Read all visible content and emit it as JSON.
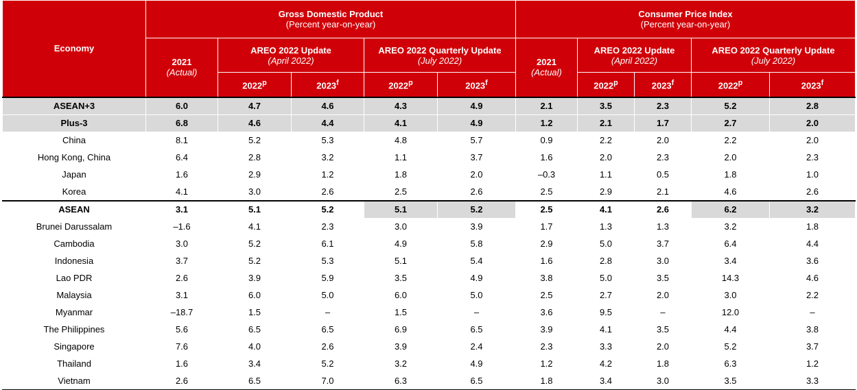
{
  "header": {
    "economy": "Economy",
    "gdp_title": "Gross Domestic Product",
    "gdp_sub": "(Percent year-on-year)",
    "cpi_title": "Consumer Price Index",
    "cpi_sub": "(Percent year-on-year)",
    "col_2021": "2021",
    "col_actual": "(Actual)",
    "areo_update": "AREO 2022 Update",
    "areo_update_date": "(April 2022)",
    "areo_quarterly": "AREO 2022 Quarterly Update",
    "areo_quarterly_date": "(July 2022)",
    "y2022": "2022",
    "y2022_sup": "p",
    "y2023": "2023",
    "y2023_sup": "f"
  },
  "rows": [
    {
      "name": "ASEAN+3",
      "gdp": [
        "6.0",
        "4.7",
        "4.6",
        "4.3",
        "4.9"
      ],
      "cpi": [
        "2.1",
        "3.5",
        "2.3",
        "5.2",
        "2.8"
      ]
    },
    {
      "name": "Plus-3",
      "gdp": [
        "6.8",
        "4.6",
        "4.4",
        "4.1",
        "4.9"
      ],
      "cpi": [
        "1.2",
        "2.1",
        "1.7",
        "2.7",
        "2.0"
      ]
    },
    {
      "name": "China",
      "gdp": [
        "8.1",
        "5.2",
        "5.3",
        "4.8",
        "5.7"
      ],
      "cpi": [
        "0.9",
        "2.2",
        "2.0",
        "2.2",
        "2.0"
      ]
    },
    {
      "name": "Hong Kong, China",
      "gdp": [
        "6.4",
        "2.8",
        "3.2",
        "1.1",
        "3.7"
      ],
      "cpi": [
        "1.6",
        "2.0",
        "2.3",
        "2.0",
        "2.3"
      ]
    },
    {
      "name": "Japan",
      "gdp": [
        "1.6",
        "2.9",
        "1.2",
        "1.8",
        "2.0"
      ],
      "cpi": [
        "–0.3",
        "1.1",
        "0.5",
        "1.8",
        "1.0"
      ]
    },
    {
      "name": "Korea",
      "gdp": [
        "4.1",
        "3.0",
        "2.6",
        "2.5",
        "2.6"
      ],
      "cpi": [
        "2.5",
        "2.9",
        "2.1",
        "4.6",
        "2.6"
      ]
    },
    {
      "name": "ASEAN",
      "gdp": [
        "3.1",
        "5.1",
        "5.2",
        "5.1",
        "5.2"
      ],
      "cpi": [
        "2.5",
        "4.1",
        "2.6",
        "6.2",
        "3.2"
      ]
    },
    {
      "name": "Brunei Darussalam",
      "gdp": [
        "–1.6",
        "4.1",
        "2.3",
        "3.0",
        "3.9"
      ],
      "cpi": [
        "1.7",
        "1.3",
        "1.3",
        "3.2",
        "1.8"
      ]
    },
    {
      "name": "Cambodia",
      "gdp": [
        "3.0",
        "5.2",
        "6.1",
        "4.9",
        "5.8"
      ],
      "cpi": [
        "2.9",
        "5.0",
        "3.7",
        "6.4",
        "4.4"
      ]
    },
    {
      "name": "Indonesia",
      "gdp": [
        "3.7",
        "5.2",
        "5.3",
        "5.1",
        "5.4"
      ],
      "cpi": [
        "1.6",
        "2.8",
        "3.0",
        "3.4",
        "3.6"
      ]
    },
    {
      "name": "Lao PDR",
      "gdp": [
        "2.6",
        "3.9",
        "5.9",
        "3.5",
        "4.9"
      ],
      "cpi": [
        "3.8",
        "5.0",
        "3.5",
        "14.3",
        "4.6"
      ]
    },
    {
      "name": "Malaysia",
      "gdp": [
        "3.1",
        "6.0",
        "5.0",
        "6.0",
        "5.0"
      ],
      "cpi": [
        "2.5",
        "2.7",
        "2.0",
        "3.0",
        "2.2"
      ]
    },
    {
      "name": "Myanmar",
      "gdp": [
        "–18.7",
        "1.5",
        "–",
        "1.5",
        "–"
      ],
      "cpi": [
        "3.6",
        "9.5",
        "–",
        "12.0",
        "–"
      ]
    },
    {
      "name": "The Philippines",
      "gdp": [
        "5.6",
        "6.5",
        "6.5",
        "6.9",
        "6.5"
      ],
      "cpi": [
        "3.9",
        "4.1",
        "3.5",
        "4.4",
        "3.8"
      ]
    },
    {
      "name": "Singapore",
      "gdp": [
        "7.6",
        "4.0",
        "2.6",
        "3.9",
        "2.4"
      ],
      "cpi": [
        "2.3",
        "3.3",
        "2.0",
        "5.2",
        "3.7"
      ]
    },
    {
      "name": "Thailand",
      "gdp": [
        "1.6",
        "3.4",
        "5.2",
        "3.2",
        "4.9"
      ],
      "cpi": [
        "1.2",
        "4.2",
        "1.8",
        "6.3",
        "1.2"
      ]
    },
    {
      "name": "Vietnam",
      "gdp": [
        "2.6",
        "6.5",
        "7.0",
        "6.3",
        "6.5"
      ],
      "cpi": [
        "1.8",
        "3.4",
        "3.0",
        "3.5",
        "3.3"
      ]
    }
  ]
}
